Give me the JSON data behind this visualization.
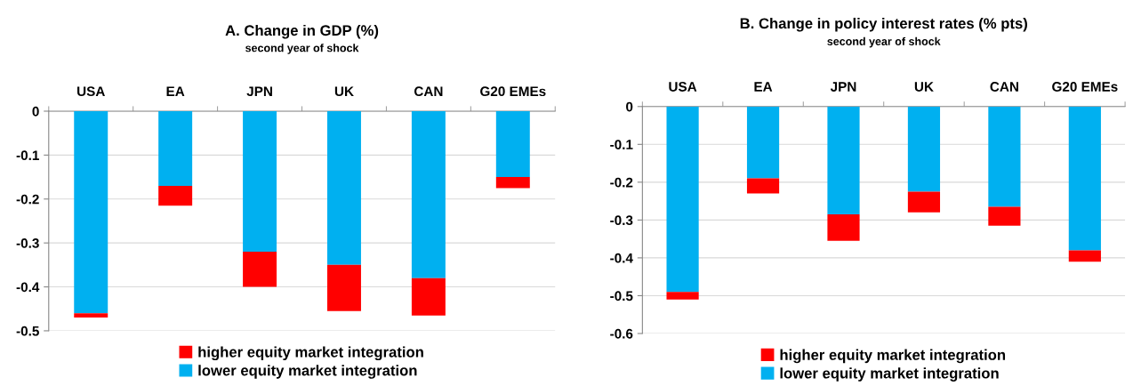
{
  "chart_data": [
    {
      "type": "bar",
      "title": "A. Change in GDP (%)",
      "subtitle": "second year of shock",
      "categories": [
        "USA",
        "EA",
        "JPN",
        "UK",
        "CAN",
        "G20 EMEs"
      ],
      "stacked": true,
      "series": [
        {
          "name": "lower equity market integration",
          "color": "#00b0f0",
          "values": [
            -0.46,
            -0.17,
            -0.32,
            -0.35,
            -0.38,
            -0.15
          ]
        },
        {
          "name": "higher equity market integration",
          "color": "#ff0000",
          "values": [
            -0.01,
            -0.045,
            -0.08,
            -0.105,
            -0.085,
            -0.025
          ]
        }
      ],
      "ylim": [
        -0.5,
        0
      ],
      "yticks": [
        {
          "value": -0.5,
          "label": "-0.5"
        },
        {
          "value": -0.4,
          "label": "-0.4"
        },
        {
          "value": -0.3,
          "label": "-0.3"
        },
        {
          "value": -0.2,
          "label": "-0.2"
        },
        {
          "value": -0.1,
          "label": "-0.1"
        },
        0
      ],
      "grid": "y",
      "legend": "bottom"
    },
    {
      "type": "bar",
      "title": "B. Change in policy interest rates (% pts)",
      "subtitle": "second year of shock",
      "categories": [
        "USA",
        "EA",
        "JPN",
        "UK",
        "CAN",
        "G20 EMEs"
      ],
      "stacked": true,
      "series": [
        {
          "name": "lower equity market integration",
          "color": "#00b0f0",
          "values": [
            -0.49,
            -0.19,
            -0.285,
            -0.225,
            -0.265,
            -0.38
          ]
        },
        {
          "name": "higher equity market integration",
          "color": "#ff0000",
          "values": [
            -0.02,
            -0.04,
            -0.07,
            -0.055,
            -0.05,
            -0.03
          ]
        }
      ],
      "ylim": [
        -0.6,
        0
      ],
      "yticks": [
        {
          "value": -0.6,
          "label": "-0.6"
        },
        {
          "value": -0.5,
          "label": "-0.5"
        },
        {
          "value": -0.4,
          "label": "-0.4"
        },
        {
          "value": -0.3,
          "label": "-0.3"
        },
        {
          "value": -0.2,
          "label": "-0.2"
        },
        {
          "value": -0.1,
          "label": "-0.1"
        },
        0
      ],
      "grid": "y",
      "legend": "bottom"
    }
  ]
}
